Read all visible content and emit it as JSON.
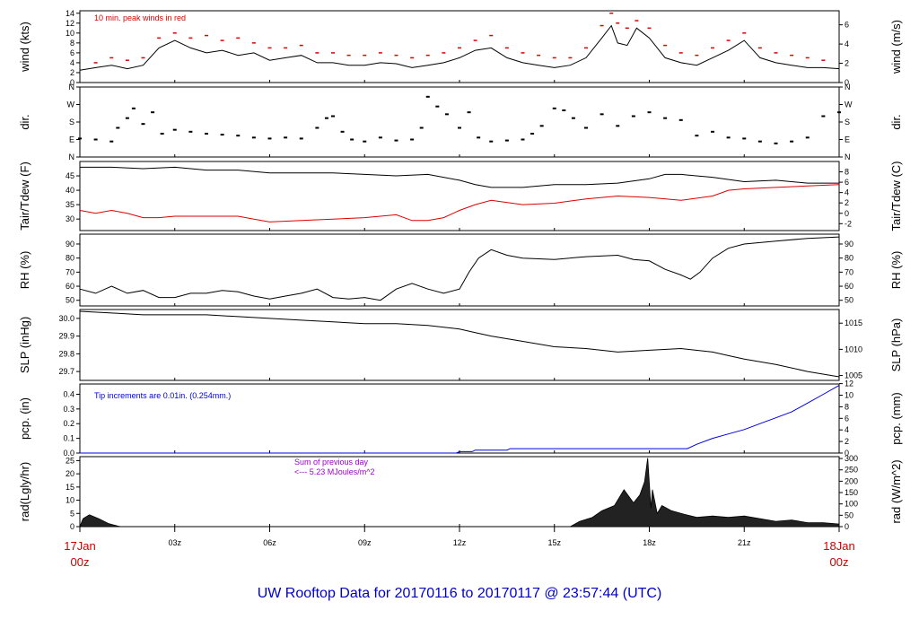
{
  "title": "UW Rooftop Data for 20170116  to  20170117 @ 23:57:44  (UTC)",
  "colors": {
    "black": "#000000",
    "red": "#dd0000",
    "blue": "#0000dd",
    "purple": "#9900cc",
    "title": "#0000cc",
    "date": "#cc0000"
  },
  "time_axis": {
    "range_hours": [
      0,
      24
    ],
    "ticks": [
      {
        "hour": 0,
        "label": ""
      },
      {
        "hour": 3,
        "label": "03z"
      },
      {
        "hour": 6,
        "label": "06z"
      },
      {
        "hour": 9,
        "label": "09z"
      },
      {
        "hour": 12,
        "label": "12z"
      },
      {
        "hour": 15,
        "label": "15z"
      },
      {
        "hour": 18,
        "label": "18z"
      },
      {
        "hour": 21,
        "label": "21z"
      },
      {
        "hour": 24,
        "label": ""
      }
    ],
    "start_date": "17Jan",
    "start_time": "00z",
    "end_date": "18Jan",
    "end_time": "00z"
  },
  "chart_data": [
    {
      "id": "wind",
      "type": "line",
      "ylabel_left": "wind (kts)",
      "ylabel_right": "wind (m/s)",
      "ylim": [
        0,
        14.5
      ],
      "left_ticks": [
        "0",
        "2",
        "4",
        "6",
        "8",
        "10",
        "12",
        "14"
      ],
      "right_ticks": [
        "0",
        "2",
        "4",
        "6"
      ],
      "annotation": "10 min. peak winds in red",
      "series": [
        {
          "name": "wind",
          "color": "#000000",
          "x": [
            0,
            0.5,
            1,
            1.5,
            2,
            2.5,
            3,
            3.5,
            4,
            4.5,
            5,
            5.5,
            6,
            6.5,
            7,
            7.5,
            8,
            8.5,
            9,
            9.5,
            10,
            10.5,
            11,
            11.5,
            12,
            12.5,
            13,
            13.5,
            14,
            14.5,
            15,
            15.5,
            16,
            16.5,
            16.8,
            17,
            17.3,
            17.6,
            18,
            18.5,
            19,
            19.5,
            20,
            20.5,
            21,
            21.5,
            22,
            22.5,
            23,
            23.5,
            24
          ],
          "y": [
            2.5,
            3,
            3.5,
            2.8,
            3.5,
            7,
            8.5,
            7,
            6,
            6.5,
            5.5,
            6,
            4.5,
            5,
            5.5,
            4,
            4,
            3.5,
            3.5,
            4,
            3.8,
            3,
            3.5,
            4,
            5,
            6.5,
            7,
            5,
            4,
            3.5,
            3,
            3.5,
            5,
            9,
            11.5,
            8,
            7.5,
            11,
            9,
            5,
            4,
            3.5,
            5,
            6.5,
            8.5,
            5,
            4,
            3.5,
            3,
            3,
            2.8
          ]
        },
        {
          "name": "10 min. peak winds",
          "color": "#dd0000",
          "x": [
            0.5,
            1,
            1.5,
            2,
            2.5,
            3,
            3.5,
            4,
            4.5,
            5,
            5.5,
            6,
            6.5,
            7,
            7.5,
            8,
            8.5,
            9,
            9.5,
            10,
            10.5,
            11,
            11.5,
            12,
            12.5,
            13,
            13.5,
            14,
            14.5,
            15,
            15.5,
            16,
            16.5,
            16.8,
            17,
            17.3,
            17.6,
            18,
            18.5,
            19,
            19.5,
            20,
            20.5,
            21,
            21.5,
            22,
            22.5,
            23,
            23.5
          ],
          "y": [
            4,
            5,
            4.5,
            5,
            9,
            10,
            9,
            9.5,
            8.5,
            9,
            8,
            7,
            7,
            7.5,
            6,
            6,
            5.5,
            5.5,
            6,
            5.5,
            5,
            5.5,
            6,
            7,
            8.5,
            9.5,
            7,
            6,
            5.5,
            5,
            5,
            7,
            11.5,
            14,
            12,
            11,
            12.5,
            11,
            7.5,
            6,
            5.5,
            7,
            8.5,
            10,
            7,
            6,
            5.5,
            5,
            4.5
          ]
        }
      ]
    },
    {
      "id": "dir",
      "type": "scatter",
      "ylabel_left": "dir.",
      "ylabel_right": "dir.",
      "ylim": [
        0,
        360
      ],
      "left_ticks": [
        "N",
        "E",
        "S",
        "W",
        "N"
      ],
      "right_ticks": [
        "N",
        "E",
        "S",
        "W",
        "N"
      ],
      "series": [
        {
          "name": "dir",
          "color": "#000000",
          "x": [
            0,
            0.5,
            1,
            1.2,
            1.5,
            1.7,
            2,
            2.3,
            2.6,
            3,
            3.5,
            4,
            4.5,
            5,
            5.5,
            6,
            6.5,
            7,
            7.5,
            7.8,
            8,
            8.3,
            8.6,
            9,
            9.5,
            10,
            10.5,
            10.8,
            11,
            11.3,
            11.6,
            12,
            12.3,
            12.6,
            13,
            13.5,
            14,
            14.3,
            14.6,
            15,
            15.3,
            15.6,
            16,
            16.5,
            17,
            17.5,
            18,
            18.5,
            19,
            19.5,
            20,
            20.5,
            21,
            21.5,
            22,
            22.5,
            23,
            23.5,
            24
          ],
          "y": [
            95,
            90,
            80,
            150,
            200,
            250,
            170,
            230,
            120,
            140,
            130,
            120,
            115,
            110,
            100,
            95,
            100,
            95,
            150,
            200,
            210,
            130,
            90,
            80,
            100,
            85,
            90,
            150,
            310,
            260,
            220,
            150,
            230,
            100,
            80,
            85,
            90,
            120,
            160,
            250,
            240,
            200,
            150,
            220,
            160,
            210,
            230,
            200,
            190,
            110,
            130,
            100,
            95,
            80,
            70,
            80,
            100,
            210,
            230
          ]
        }
      ]
    },
    {
      "id": "temp",
      "type": "line",
      "ylabel_left": "Tair/Tdew (F)",
      "ylabel_right": "Tair/Tdew (C)",
      "ylim": [
        26,
        50
      ],
      "left_ticks": [
        "30",
        "35",
        "40",
        "45"
      ],
      "right_ticks": [
        "-2",
        "0",
        "2",
        "4",
        "6",
        "8"
      ],
      "series": [
        {
          "name": "Tair",
          "color": "#000000",
          "x": [
            0,
            1,
            2,
            3,
            4,
            5,
            6,
            7,
            8,
            9,
            10,
            11,
            12,
            12.5,
            13,
            14,
            15,
            16,
            17,
            18,
            18.5,
            19,
            20,
            21,
            22,
            23,
            24
          ],
          "y": [
            48,
            48,
            47.5,
            48,
            47,
            47,
            46,
            46,
            46,
            45.5,
            45,
            45.5,
            43.5,
            42,
            41,
            41,
            42,
            42,
            42.5,
            44,
            45.5,
            45.5,
            44.5,
            43,
            43.5,
            42.5,
            42.5
          ]
        },
        {
          "name": "Tdew",
          "color": "#dd0000",
          "x": [
            0,
            0.5,
            1,
            1.5,
            2,
            2.5,
            3,
            4,
            5,
            5.5,
            6,
            7,
            8,
            9,
            10,
            10.5,
            11,
            11.5,
            12,
            12.5,
            13,
            14,
            15,
            16,
            17,
            18,
            19,
            20,
            20.5,
            21,
            22,
            23,
            24
          ],
          "y": [
            33,
            32,
            33,
            32,
            30.5,
            30.5,
            31,
            31,
            31,
            30,
            29,
            29.5,
            30,
            30.5,
            31.5,
            29.5,
            29.5,
            30.5,
            33,
            35,
            36.5,
            35,
            35.5,
            37,
            38,
            37.5,
            36.5,
            38,
            40,
            40.5,
            41,
            41.5,
            42
          ]
        }
      ]
    },
    {
      "id": "rh",
      "type": "line",
      "ylabel_left": "RH (%)",
      "ylabel_right": "RH (%)",
      "ylim": [
        46,
        97
      ],
      "left_ticks": [
        "50",
        "60",
        "70",
        "80",
        "90"
      ],
      "right_ticks": [
        "50",
        "60",
        "70",
        "80",
        "90"
      ],
      "series": [
        {
          "name": "RH",
          "color": "#000000",
          "x": [
            0,
            0.5,
            1,
            1.5,
            2,
            2.5,
            3,
            3.5,
            4,
            4.5,
            5,
            5.5,
            6,
            6.5,
            7,
            7.5,
            8,
            8.5,
            9,
            9.5,
            10,
            10.5,
            11,
            11.5,
            12,
            12.3,
            12.6,
            13,
            13.5,
            14,
            15,
            16,
            17,
            17.5,
            18,
            18.5,
            19,
            19.3,
            19.6,
            20,
            20.5,
            21,
            22,
            23,
            24
          ],
          "y": [
            58,
            55,
            60,
            55,
            57,
            52,
            52,
            55,
            55,
            57,
            56,
            53,
            51,
            53,
            55,
            58,
            52,
            51,
            52,
            50,
            58,
            62,
            58,
            55,
            58,
            70,
            80,
            86,
            82,
            80,
            79,
            81,
            82,
            79,
            78,
            72,
            68,
            65,
            70,
            80,
            87,
            90,
            92,
            94,
            95
          ]
        }
      ]
    },
    {
      "id": "slp",
      "type": "line",
      "ylabel_left": "SLP (inHg)",
      "ylabel_right": "SLP (hPa)",
      "ylim": [
        29.65,
        30.05
      ],
      "left_ticks": [
        "29.7",
        "29.8",
        "29.9",
        "30.0"
      ],
      "right_ticks": [
        "1005",
        "1010",
        "1015"
      ],
      "series": [
        {
          "name": "SLP",
          "color": "#000000",
          "x": [
            0,
            1,
            2,
            3,
            4,
            5,
            6,
            7,
            8,
            9,
            10,
            11,
            12,
            12.5,
            13,
            14,
            15,
            16,
            17,
            18,
            19,
            20,
            20.5,
            21,
            22,
            23,
            24
          ],
          "y": [
            30.04,
            30.03,
            30.02,
            30.02,
            30.02,
            30.01,
            30.0,
            29.99,
            29.98,
            29.97,
            29.97,
            29.96,
            29.94,
            29.92,
            29.9,
            29.87,
            29.84,
            29.83,
            29.81,
            29.82,
            29.83,
            29.81,
            29.79,
            29.77,
            29.74,
            29.7,
            29.67
          ]
        }
      ]
    },
    {
      "id": "pcp",
      "type": "line",
      "ylabel_left": "pcp. (in)",
      "ylabel_right": "pcp. (mm)",
      "ylim": [
        0,
        0.47
      ],
      "left_ticks": [
        "0.0",
        "0.1",
        "0.2",
        "0.3",
        "0.4"
      ],
      "right_ticks": [
        "0",
        "2",
        "4",
        "6",
        "8",
        "10",
        "12"
      ],
      "annotation": "Tip increments are 0.01in. (0.254mm.)",
      "series": [
        {
          "name": "pcp",
          "color": "#0000dd",
          "x": [
            0,
            11.9,
            12,
            12.4,
            12.5,
            13.5,
            13.6,
            19.2,
            19.5,
            20,
            20.5,
            21,
            21.5,
            22,
            22.5,
            23,
            23.5,
            24
          ],
          "y": [
            0,
            0,
            0.01,
            0.01,
            0.02,
            0.02,
            0.03,
            0.03,
            0.06,
            0.1,
            0.13,
            0.16,
            0.2,
            0.24,
            0.28,
            0.34,
            0.4,
            0.46
          ]
        }
      ]
    },
    {
      "id": "rad",
      "type": "area",
      "ylabel_left": "rad(Lgly/hr)",
      "ylabel_right": "rad (W/m^2)",
      "ylim": [
        0,
        26.5
      ],
      "left_ticks": [
        "0",
        "5",
        "10",
        "15",
        "20",
        "25"
      ],
      "right_ticks": [
        "0",
        "50",
        "100",
        "150",
        "200",
        "250",
        "300"
      ],
      "annotation_line1": "Sum of previous day",
      "annotation_line2": "<--- 5.23 MJoules/m^2",
      "series": [
        {
          "name": "rad",
          "color": "#000000",
          "x": [
            0,
            0.1,
            0.3,
            0.6,
            0.9,
            1.2,
            1.3,
            15.5,
            15.8,
            16.2,
            16.5,
            16.9,
            17.2,
            17.5,
            17.7,
            17.85,
            17.95,
            18.05,
            18.1,
            18.25,
            18.4,
            18.7,
            19,
            19.5,
            20,
            20.5,
            21,
            21.5,
            22,
            22.5,
            23,
            23.5,
            24
          ],
          "y": [
            0,
            3,
            4.5,
            3,
            1.2,
            0.2,
            0,
            0,
            2,
            3.5,
            6,
            8,
            14,
            9,
            12,
            17,
            26,
            7,
            14,
            5,
            8,
            6,
            5,
            3.5,
            4,
            3.5,
            4,
            3,
            2,
            2.5,
            1.5,
            1.5,
            1
          ]
        }
      ]
    }
  ]
}
